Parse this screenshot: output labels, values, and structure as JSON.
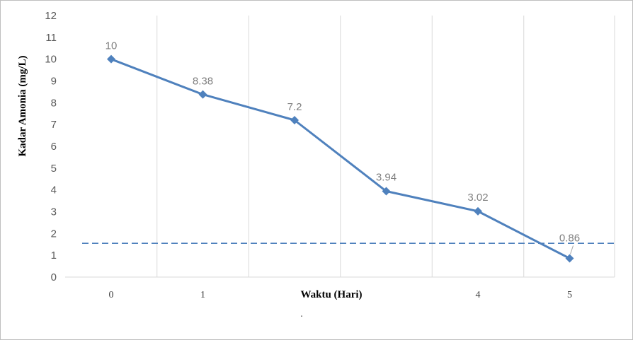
{
  "chart_data": {
    "type": "line",
    "xlabel": "Waktu (Hari)",
    "ylabel": "Kadar Amonia (mg/L)",
    "ylim": [
      0,
      12
    ],
    "y_ticks": [
      "0",
      "1",
      "2",
      "3",
      "4",
      "5",
      "6",
      "7",
      "8",
      "9",
      "10",
      "11",
      "12"
    ],
    "x_tick_labels": [
      "0",
      "1",
      "4",
      "5"
    ],
    "grid": "vertical",
    "legend": "none",
    "footnote": ".",
    "series": [
      {
        "x": [
          0,
          1,
          2,
          3,
          4,
          5
        ],
        "values": [
          10,
          8.38,
          7.2,
          3.94,
          3.02,
          0.86
        ],
        "data_labels": [
          "10",
          "8.38",
          "7.2",
          "3.94",
          "3.02",
          "0.86"
        ],
        "color": "#4f81bd",
        "marker": "diamond"
      }
    ],
    "reference_line": {
      "y": 1.55,
      "style": "dashed",
      "color": "#4f81bd"
    }
  }
}
